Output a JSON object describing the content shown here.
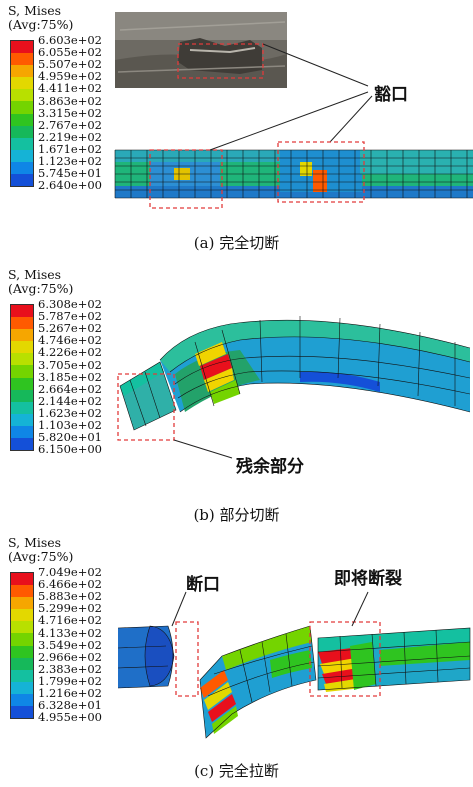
{
  "panels": [
    {
      "legend": {
        "title1": "S, Mises",
        "title2": "(Avg:75%)",
        "values": [
          "6.603e+02",
          "6.055e+02",
          "5.507e+02",
          "4.959e+02",
          "4.411e+02",
          "3.863e+02",
          "3.315e+02",
          "2.767e+02",
          "2.219e+02",
          "1.671e+02",
          "1.123e+02",
          "5.745e+01",
          "2.640e+00"
        ]
      },
      "callout": "豁口",
      "caption": "(a) 完全切断"
    },
    {
      "legend": {
        "title1": "S, Mises",
        "title2": "(Avg:75%)",
        "values": [
          "6.308e+02",
          "5.787e+02",
          "5.267e+02",
          "4.746e+02",
          "4.226e+02",
          "3.705e+02",
          "3.185e+02",
          "2.664e+02",
          "2.144e+02",
          "1.623e+02",
          "1.103e+02",
          "5.820e+01",
          "6.150e+00"
        ]
      },
      "callout": "残余部分",
      "caption": "(b) 部分切断"
    },
    {
      "legend": {
        "title1": "S, Mises",
        "title2": "(Avg:75%)",
        "values": [
          "7.049e+02",
          "6.466e+02",
          "5.883e+02",
          "5.299e+02",
          "4.716e+02",
          "4.133e+02",
          "3.549e+02",
          "2.966e+02",
          "2.383e+02",
          "1.799e+02",
          "1.216e+02",
          "6.328e+01",
          "4.955e+00"
        ]
      },
      "callout1": "断口",
      "callout2": "即将断裂",
      "caption": "(c) 完全拉断"
    }
  ],
  "colorscale": [
    "#e8101c",
    "#ff5a00",
    "#f6a600",
    "#e3d800",
    "#b8e000",
    "#74d400",
    "#2fc420",
    "#16b85a",
    "#14c0a0",
    "#15b3d6",
    "#0f86e6",
    "#1450d8",
    "#1a2aa8"
  ]
}
